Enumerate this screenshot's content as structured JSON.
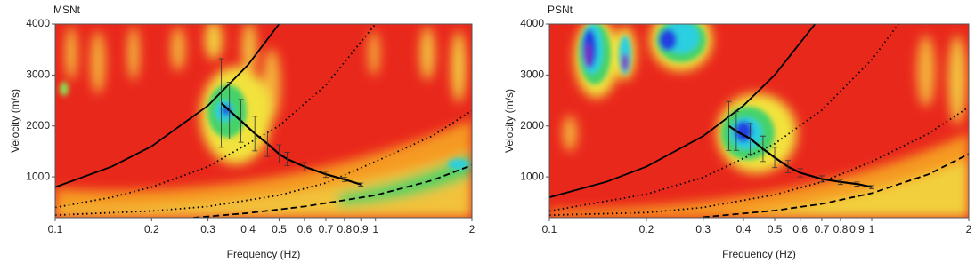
{
  "chart_data": [
    {
      "type": "line",
      "title": "MSNt",
      "xlabel": "Frequency (Hz)",
      "ylabel": "Velocity (m/s)",
      "xscale": "log",
      "xlim": [
        0.1,
        2
      ],
      "ylim": [
        200,
        4000
      ],
      "xticks": [
        0.1,
        0.2,
        0.3,
        0.4,
        0.5,
        0.6,
        0.7,
        0.8,
        0.9,
        1,
        2
      ],
      "yticks": [
        1000,
        2000,
        3000,
        4000
      ],
      "series": [
        {
          "color": "#000000",
          "style": "solid",
          "x": [
            0.1,
            0.15,
            0.2,
            0.3,
            0.4,
            0.5
          ],
          "values": [
            800,
            1200,
            1600,
            2400,
            3200,
            4000
          ]
        },
        {
          "color": "#000000",
          "style": "dotted",
          "x": [
            0.1,
            0.15,
            0.2,
            0.3,
            0.5,
            0.7,
            1
          ],
          "values": [
            400,
            600,
            800,
            1200,
            2000,
            2800,
            4000
          ]
        },
        {
          "color": "#000000",
          "style": "dotted",
          "x": [
            0.1,
            0.2,
            0.3,
            0.5,
            0.7,
            1,
            1.5,
            2
          ],
          "values": [
            250,
            330,
            420,
            640,
            880,
            1300,
            1800,
            2300
          ]
        },
        {
          "color": "#000000",
          "style": "dashed",
          "x": [
            0.27,
            0.4,
            0.6,
            1,
            1.5,
            2
          ],
          "values": [
            200,
            290,
            420,
            640,
            930,
            1230
          ]
        },
        {
          "color": "#000000",
          "style": "curve",
          "x": [
            0.33,
            0.35,
            0.38,
            0.42,
            0.46,
            0.5,
            0.53,
            0.6,
            0.7,
            0.8,
            0.9
          ],
          "values": [
            2450,
            2300,
            2100,
            1850,
            1650,
            1450,
            1350,
            1200,
            1050,
            950,
            850
          ],
          "errors": [
            870,
            560,
            420,
            340,
            250,
            180,
            130,
            80,
            60,
            40,
            30
          ]
        }
      ]
    },
    {
      "type": "line",
      "title": "PSNt",
      "xlabel": "Frequency (Hz)",
      "ylabel": "Velocity (m/s)",
      "xscale": "log",
      "xlim": [
        0.1,
        2
      ],
      "ylim": [
        200,
        4000
      ],
      "xticks": [
        0.1,
        0.2,
        0.3,
        0.4,
        0.5,
        0.6,
        0.7,
        0.8,
        0.9,
        1,
        2
      ],
      "yticks": [
        1000,
        2000,
        3000,
        4000
      ],
      "series": [
        {
          "color": "#000000",
          "style": "solid",
          "x": [
            0.1,
            0.15,
            0.2,
            0.3,
            0.4,
            0.5,
            0.667
          ],
          "values": [
            600,
            900,
            1200,
            1800,
            2400,
            3000,
            4000
          ]
        },
        {
          "color": "#000000",
          "style": "dotted",
          "x": [
            0.1,
            0.2,
            0.3,
            0.5,
            0.7,
            1,
            1.21
          ],
          "values": [
            330,
            660,
            990,
            1650,
            2310,
            3300,
            4000
          ]
        },
        {
          "color": "#000000",
          "style": "dotted",
          "x": [
            0.1,
            0.2,
            0.3,
            0.5,
            0.7,
            1,
            1.5,
            2
          ],
          "values": [
            250,
            300,
            400,
            650,
            900,
            1300,
            1850,
            2370
          ]
        },
        {
          "color": "#000000",
          "style": "dashed",
          "x": [
            0.3,
            0.5,
            0.7,
            1,
            1.5,
            2
          ],
          "values": [
            210,
            340,
            470,
            680,
            1050,
            1450
          ]
        },
        {
          "color": "#000000",
          "style": "curve",
          "x": [
            0.36,
            0.38,
            0.42,
            0.46,
            0.5,
            0.55,
            0.6,
            0.7,
            0.8,
            0.9,
            1.0
          ],
          "values": [
            2000,
            1900,
            1750,
            1550,
            1380,
            1200,
            1080,
            960,
            900,
            860,
            800
          ],
          "errors": [
            480,
            380,
            300,
            250,
            200,
            120,
            80,
            60,
            50,
            40,
            30
          ]
        }
      ]
    }
  ]
}
